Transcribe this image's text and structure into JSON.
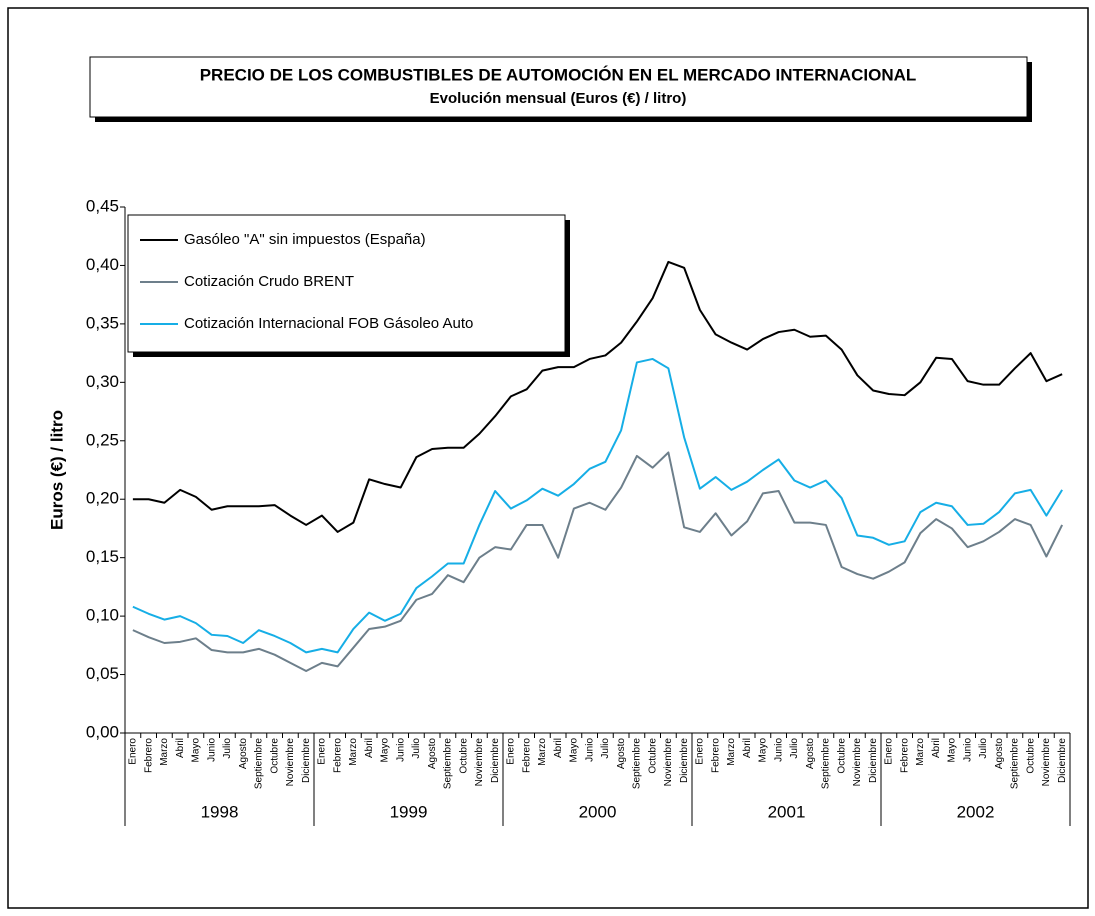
{
  "chart_data": {
    "type": "line",
    "title": "PRECIO DE LOS COMBUSTIBLES DE AUTOMOCIÓN EN EL MERCADO INTERNACIONAL",
    "subtitle": "Evolución mensual (Euros (€) / litro)",
    "y_label": "Euros (€) / litro",
    "categories": [
      "Enero",
      "Febrero",
      "Marzo",
      "Abril",
      "Mayo",
      "Junio",
      "Julio",
      "Agosto",
      "Septiembre",
      "Octubre",
      "Noviembre",
      "Diciembre",
      "Enero",
      "Febrero",
      "Marzo",
      "Abril",
      "Mayo",
      "Junio",
      "Julio",
      "Agosto",
      "Septiembre",
      "Octubre",
      "Noviembre",
      "Diciembre",
      "Enero",
      "Febrero",
      "Marzo",
      "Abril",
      "Mayo",
      "Junio",
      "Julio",
      "Agosto",
      "Septiembre",
      "Octubre",
      "Noviembre",
      "Diciembre",
      "Enero",
      "Febrero",
      "Marzo",
      "Abril",
      "Mayo",
      "Junio",
      "Julio",
      "Agosto",
      "Septiembre",
      "Octubre",
      "Noviembre",
      "Diciembre",
      "Enero",
      "Febrero",
      "Marzo",
      "Abril",
      "Mayo",
      "Junio",
      "Julio",
      "Agosto",
      "Septiembre",
      "Octubre",
      "Noviembre",
      "Diciembre"
    ],
    "year_groups": [
      "1998",
      "1999",
      "2000",
      "2001",
      "2002"
    ],
    "series": [
      {
        "name": "Gasóleo \"A\" sin impuestos (España)",
        "color": "#000000",
        "values": [
          0.2,
          0.2,
          0.197,
          0.208,
          0.202,
          0.191,
          0.194,
          0.194,
          0.194,
          0.195,
          0.186,
          0.178,
          0.186,
          0.172,
          0.18,
          0.217,
          0.213,
          0.21,
          0.236,
          0.243,
          0.244,
          0.244,
          0.256,
          0.271,
          0.288,
          0.294,
          0.31,
          0.313,
          0.313,
          0.32,
          0.323,
          0.334,
          0.352,
          0.372,
          0.403,
          0.398,
          0.362,
          0.341,
          0.334,
          0.328,
          0.337,
          0.343,
          0.345,
          0.339,
          0.34,
          0.328,
          0.306,
          0.293,
          0.29,
          0.289,
          0.3,
          0.321,
          0.32,
          0.301,
          0.298,
          0.298,
          0.312,
          0.325,
          0.301,
          0.307
        ]
      },
      {
        "name": "Cotización Crudo BRENT",
        "color": "#6d7f8b",
        "values": [
          0.088,
          0.082,
          0.077,
          0.078,
          0.081,
          0.071,
          0.069,
          0.069,
          0.072,
          0.067,
          0.06,
          0.053,
          0.06,
          0.057,
          0.073,
          0.089,
          0.091,
          0.096,
          0.114,
          0.119,
          0.135,
          0.129,
          0.15,
          0.159,
          0.157,
          0.178,
          0.178,
          0.15,
          0.192,
          0.197,
          0.191,
          0.21,
          0.237,
          0.227,
          0.24,
          0.176,
          0.172,
          0.188,
          0.169,
          0.181,
          0.205,
          0.207,
          0.18,
          0.18,
          0.178,
          0.142,
          0.136,
          0.132,
          0.138,
          0.146,
          0.171,
          0.183,
          0.175,
          0.159,
          0.164,
          0.172,
          0.183,
          0.178,
          0.151,
          0.178
        ]
      },
      {
        "name": "Cotización Internacional FOB Gásoleo Auto",
        "color": "#16aee6",
        "values": [
          0.108,
          0.102,
          0.097,
          0.1,
          0.094,
          0.084,
          0.083,
          0.077,
          0.088,
          0.083,
          0.077,
          0.069,
          0.072,
          0.069,
          0.089,
          0.103,
          0.096,
          0.102,
          0.124,
          0.134,
          0.145,
          0.145,
          0.178,
          0.207,
          0.192,
          0.199,
          0.209,
          0.203,
          0.213,
          0.226,
          0.232,
          0.259,
          0.317,
          0.32,
          0.312,
          0.253,
          0.209,
          0.219,
          0.208,
          0.215,
          0.225,
          0.234,
          0.216,
          0.21,
          0.216,
          0.201,
          0.169,
          0.167,
          0.161,
          0.164,
          0.189,
          0.197,
          0.194,
          0.178,
          0.179,
          0.189,
          0.205,
          0.208,
          0.186,
          0.208
        ]
      }
    ],
    "ylim": [
      0,
      0.45
    ],
    "yticks": [
      {
        "value": 0,
        "label": "0,00"
      },
      {
        "value": 0.05,
        "label": "0,05"
      },
      {
        "value": 0.1,
        "label": "0,10"
      },
      {
        "value": 0.15,
        "label": "0,15"
      },
      {
        "value": 0.2,
        "label": "0,20"
      },
      {
        "value": 0.25,
        "label": "0,25"
      },
      {
        "value": 0.3,
        "label": "0,30"
      },
      {
        "value": 0.35,
        "label": "0,35"
      },
      {
        "value": 0.4,
        "label": "0,40"
      },
      {
        "value": 0.45,
        "label": "0,45"
      }
    ],
    "grid": false,
    "legend": "upper left"
  }
}
